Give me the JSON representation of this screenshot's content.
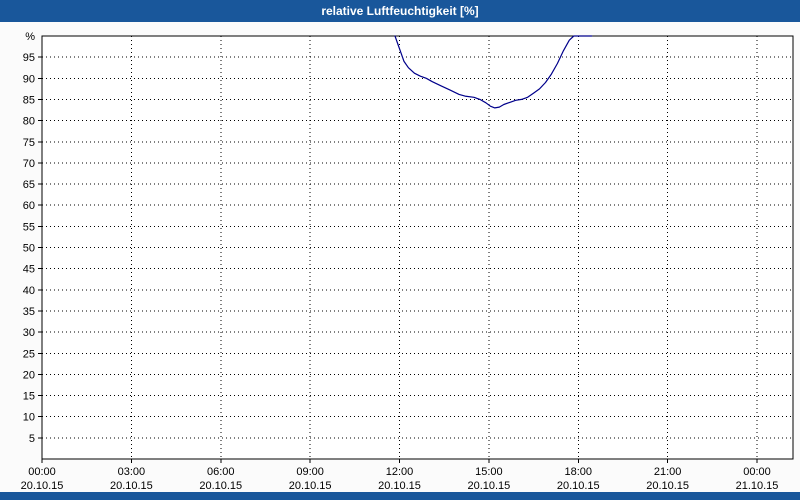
{
  "title_bar": {
    "title": "relative Luftfeuchtigkeit [%]"
  },
  "colors": {
    "bar_blue": "#19579b",
    "line_blue": "#00008b",
    "grid_black": "#000000",
    "plot_bg": "#ffffff",
    "page_bg": "#fbfbfb"
  },
  "chart_data": {
    "type": "line",
    "title": "relative Luftfeuchtigkeit [%]",
    "xlabel": "",
    "ylabel": "%",
    "ylim": [
      0,
      100
    ],
    "xlim_hours": [
      0,
      24
    ],
    "grid": true,
    "legend_position": "none",
    "y_ticks": [
      {
        "value": 95,
        "label": "95"
      },
      {
        "value": 90,
        "label": "90"
      },
      {
        "value": 85,
        "label": "85"
      },
      {
        "value": 80,
        "label": "80"
      },
      {
        "value": 75,
        "label": "75"
      },
      {
        "value": 70,
        "label": "70"
      },
      {
        "value": 65,
        "label": "65"
      },
      {
        "value": 60,
        "label": "60"
      },
      {
        "value": 55,
        "label": "55"
      },
      {
        "value": 50,
        "label": "50"
      },
      {
        "value": 45,
        "label": "45"
      },
      {
        "value": 40,
        "label": "40"
      },
      {
        "value": 35,
        "label": "35"
      },
      {
        "value": 30,
        "label": "30"
      },
      {
        "value": 25,
        "label": "25"
      },
      {
        "value": 20,
        "label": "20"
      },
      {
        "value": 15,
        "label": "15"
      },
      {
        "value": 10,
        "label": "10"
      },
      {
        "value": 5,
        "label": "5"
      }
    ],
    "x_ticks": [
      {
        "hour": 0,
        "time": "00:00",
        "date": "20.10.15"
      },
      {
        "hour": 3,
        "time": "03:00",
        "date": "20.10.15"
      },
      {
        "hour": 6,
        "time": "06:00",
        "date": "20.10.15"
      },
      {
        "hour": 9,
        "time": "09:00",
        "date": "20.10.15"
      },
      {
        "hour": 12,
        "time": "12:00",
        "date": "20.10.15"
      },
      {
        "hour": 15,
        "time": "15:00",
        "date": "20.10.15"
      },
      {
        "hour": 18,
        "time": "18:00",
        "date": "20.10.15"
      },
      {
        "hour": 21,
        "time": "21:00",
        "date": "20.10.15"
      },
      {
        "hour": 24,
        "time": "00:00",
        "date": "21.10.15"
      }
    ],
    "series": [
      {
        "name": "relative Luftfeuchtigkeit [%]",
        "color": "#00008b",
        "points": [
          [
            11.85,
            100
          ],
          [
            11.95,
            98
          ],
          [
            12.05,
            96
          ],
          [
            12.15,
            94
          ],
          [
            12.3,
            92.5
          ],
          [
            12.5,
            91.2
          ],
          [
            12.7,
            90.5
          ],
          [
            12.9,
            90
          ],
          [
            13.1,
            89.2
          ],
          [
            13.4,
            88.2
          ],
          [
            13.7,
            87.2
          ],
          [
            14.0,
            86.2
          ],
          [
            14.2,
            85.8
          ],
          [
            14.5,
            85.5
          ],
          [
            14.7,
            85.0
          ],
          [
            14.9,
            84.2
          ],
          [
            15.05,
            83.4
          ],
          [
            15.2,
            83.0
          ],
          [
            15.35,
            83.2
          ],
          [
            15.5,
            83.8
          ],
          [
            15.7,
            84.3
          ],
          [
            15.9,
            84.8
          ],
          [
            16.1,
            85.0
          ],
          [
            16.3,
            85.5
          ],
          [
            16.5,
            86.5
          ],
          [
            16.7,
            87.5
          ],
          [
            16.9,
            89.0
          ],
          [
            17.1,
            91.0
          ],
          [
            17.3,
            93.5
          ],
          [
            17.5,
            96.5
          ],
          [
            17.7,
            99.0
          ],
          [
            17.85,
            100
          ],
          [
            18.45,
            100
          ]
        ]
      }
    ]
  }
}
